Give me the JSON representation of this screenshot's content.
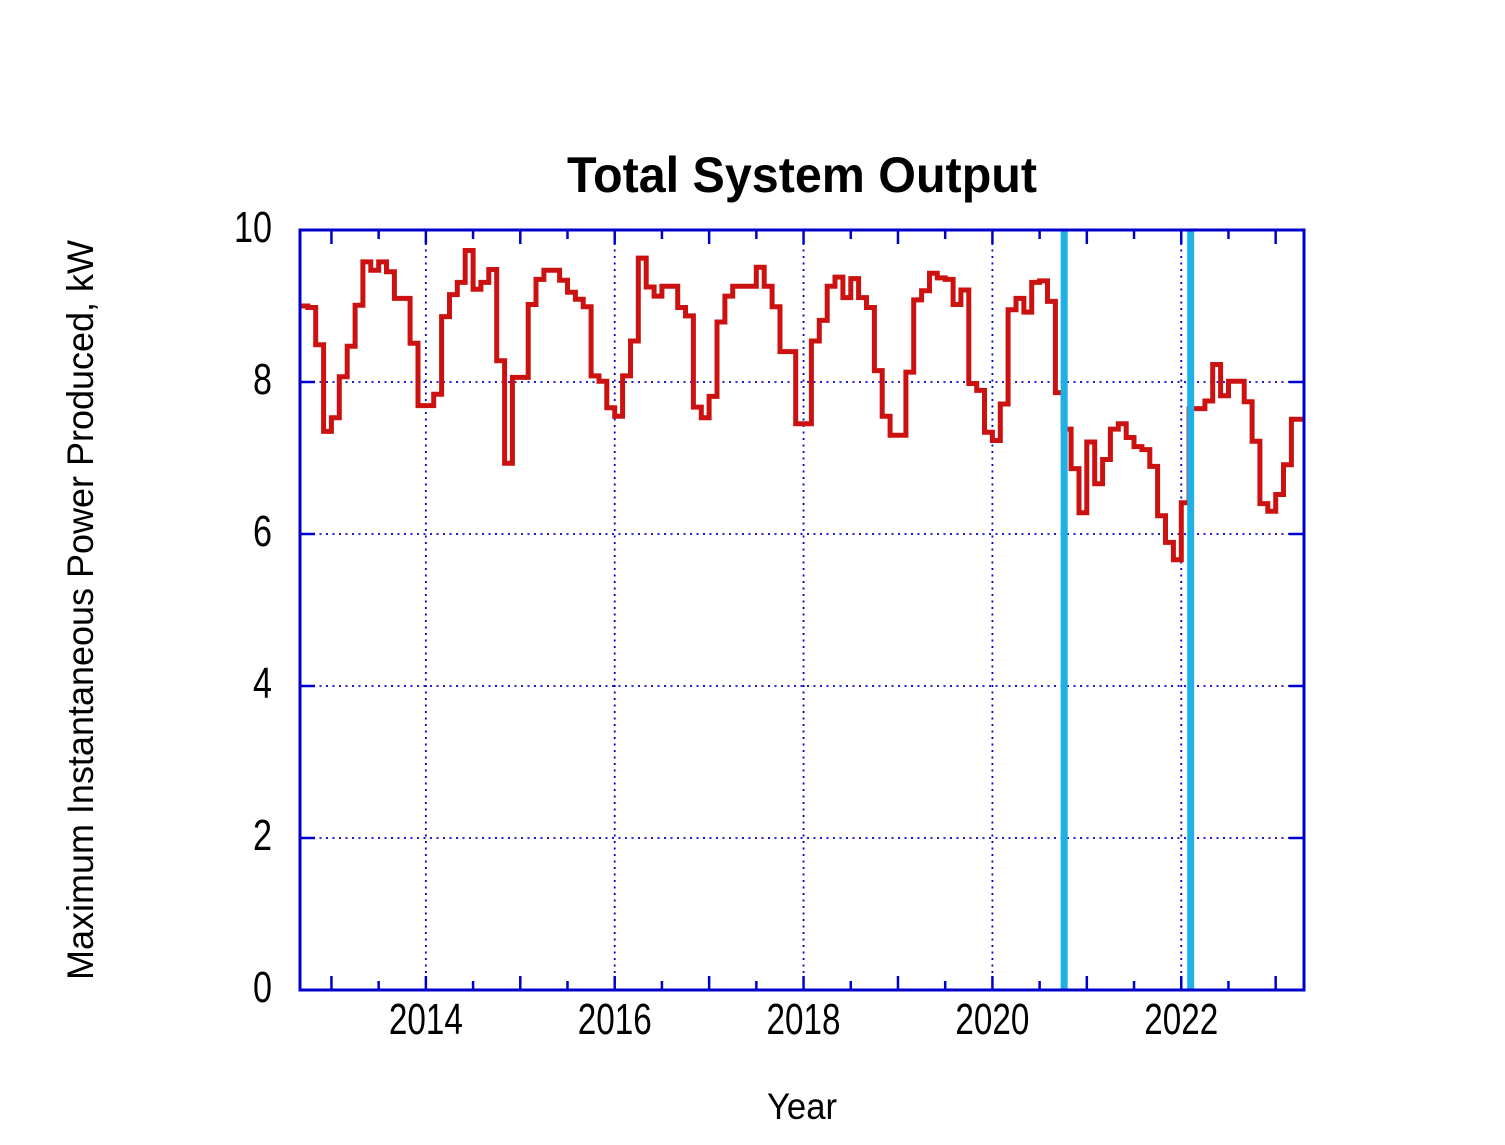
{
  "chart_data": {
    "type": "line",
    "subtype": "step-post",
    "title": "Total System Output",
    "xlabel": "Year",
    "ylabel": "Maximum Instantaneous Power Produced, kW",
    "xlim": [
      2012.667,
      2023.3
    ],
    "ylim": [
      0,
      10
    ],
    "x_major_gridlines": [
      2014,
      2016,
      2018,
      2020,
      2022
    ],
    "x_tick_range": [
      2013,
      2023
    ],
    "x_tick_interval": 0.5,
    "y_ticks": [
      0,
      2,
      4,
      6,
      8,
      10
    ],
    "y_gridlines": [
      2,
      4,
      6,
      8
    ],
    "grid_style": "dotted",
    "legend_position": "none",
    "colors": {
      "frame": "#0000cc",
      "grid": "#0000cc",
      "series": "#cc1111",
      "event_marker": "#1fb0e6",
      "text": "#000000"
    },
    "series": [
      {
        "name": "monthly-maximum-power",
        "color": "#cc1111",
        "x_start": 2012.6667,
        "x_step_years": 0.0833333,
        "step_mode": "post",
        "values": [
          9.0,
          8.98,
          8.49,
          7.35,
          7.53,
          8.07,
          8.47,
          9.01,
          9.58,
          9.47,
          9.58,
          9.45,
          9.1,
          9.1,
          8.51,
          7.69,
          7.69,
          7.84,
          8.86,
          9.15,
          9.31,
          9.73,
          9.22,
          9.31,
          9.48,
          8.28,
          6.93,
          8.06,
          8.06,
          9.02,
          9.35,
          9.47,
          9.47,
          9.34,
          9.18,
          9.09,
          8.99,
          8.08,
          8.01,
          7.66,
          7.55,
          8.08,
          8.54,
          9.63,
          9.25,
          9.13,
          9.26,
          9.26,
          8.98,
          8.87,
          7.67,
          7.53,
          7.81,
          8.79,
          9.13,
          9.26,
          9.26,
          9.26,
          9.51,
          9.26,
          8.99,
          8.4,
          8.4,
          7.45,
          7.45,
          8.54,
          8.81,
          9.26,
          9.38,
          9.11,
          9.36,
          9.11,
          8.98,
          8.15,
          7.55,
          7.3,
          7.3,
          8.13,
          9.08,
          9.2,
          9.43,
          9.37,
          9.35,
          9.02,
          9.21,
          7.98,
          7.89,
          7.34,
          7.23,
          7.71,
          8.95,
          9.1,
          8.92,
          9.31,
          9.33,
          9.06,
          7.86,
          7.38,
          6.86,
          6.28,
          7.21,
          6.66,
          6.98,
          7.38,
          7.45,
          7.27,
          7.15,
          7.11,
          6.89,
          6.24,
          5.89,
          5.66,
          6.41,
          7.65,
          7.65,
          7.75,
          8.23,
          7.82,
          8.01,
          8.01,
          7.74,
          7.22,
          6.4,
          6.3,
          6.52,
          6.91,
          7.51,
          7.51
        ]
      }
    ],
    "vlines": [
      {
        "x": 2020.76,
        "color": "#1fb0e6",
        "name": "event-marker-line-1"
      },
      {
        "x": 2022.1,
        "color": "#1fb0e6",
        "name": "event-marker-line-2"
      }
    ]
  }
}
